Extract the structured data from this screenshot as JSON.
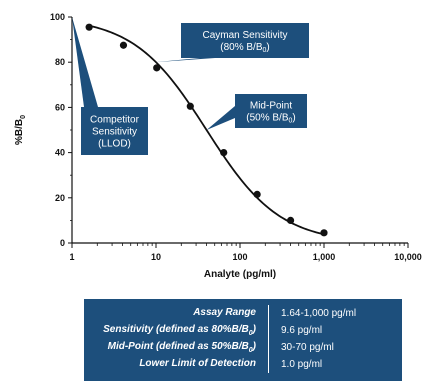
{
  "chart_data": {
    "type": "scatter",
    "xlabel": "Analyte (pg/ml)",
    "ylabel_main": "%B/B",
    "ylabel_sub": "0",
    "x_scale": "log",
    "xlim": [
      1,
      10000
    ],
    "ylim": [
      0,
      100
    ],
    "x_ticks": [
      1,
      10,
      100,
      1000,
      10000
    ],
    "x_tick_labels": [
      "1",
      "10",
      "100",
      "1,000",
      "10,000"
    ],
    "y_ticks": [
      0,
      20,
      40,
      60,
      80,
      100
    ],
    "y_tick_labels": [
      "0",
      "20",
      "40",
      "60",
      "80",
      "100"
    ],
    "points": [
      {
        "x": 1.6,
        "y": 95.5
      },
      {
        "x": 4.1,
        "y": 87.5
      },
      {
        "x": 10.2,
        "y": 77.5
      },
      {
        "x": 25.6,
        "y": 60.5
      },
      {
        "x": 64,
        "y": 40.0
      },
      {
        "x": 160,
        "y": 21.5
      },
      {
        "x": 400,
        "y": 10.0
      },
      {
        "x": 1000,
        "y": 4.5
      }
    ],
    "fit_curve": {
      "type": "4PL",
      "top": 100,
      "bottom": 0,
      "ec50": 40,
      "slope": 1.0
    },
    "annotations": [
      {
        "name": "cayman-sensitivity",
        "lines": [
          "Cayman Sensitivity",
          "(80% B/B0)"
        ],
        "points_to": {
          "x": 9.6,
          "y": 80
        }
      },
      {
        "name": "mid-point",
        "lines": [
          "Mid-Point",
          "(50% B/B0)"
        ],
        "points_to": {
          "x": 40,
          "y": 50
        }
      },
      {
        "name": "competitor-sensitivity",
        "lines": [
          "Competitor",
          "Sensitivity",
          "(LLOD)"
        ],
        "points_to": {
          "x": 1.0,
          "y": 100
        }
      }
    ],
    "colors": {
      "callout": "#1d4f7c",
      "curve": "#111111",
      "points": "#111111"
    }
  },
  "summary": {
    "rows": [
      {
        "label": "Assay Range",
        "label_sub": "",
        "label_tail": "",
        "value": "1.64-1,000 pg/ml"
      },
      {
        "label": "Sensitivity (defined as 80%B/B",
        "label_sub": "0",
        "label_tail": ")",
        "value": "9.6 pg/ml"
      },
      {
        "label": "Mid-Point (defined as 50%B/B",
        "label_sub": "0",
        "label_tail": ")",
        "value": "30-70 pg/ml"
      },
      {
        "label": "Lower Limit of Detection",
        "label_sub": "",
        "label_tail": "",
        "value": "1.0 pg/ml"
      }
    ]
  }
}
